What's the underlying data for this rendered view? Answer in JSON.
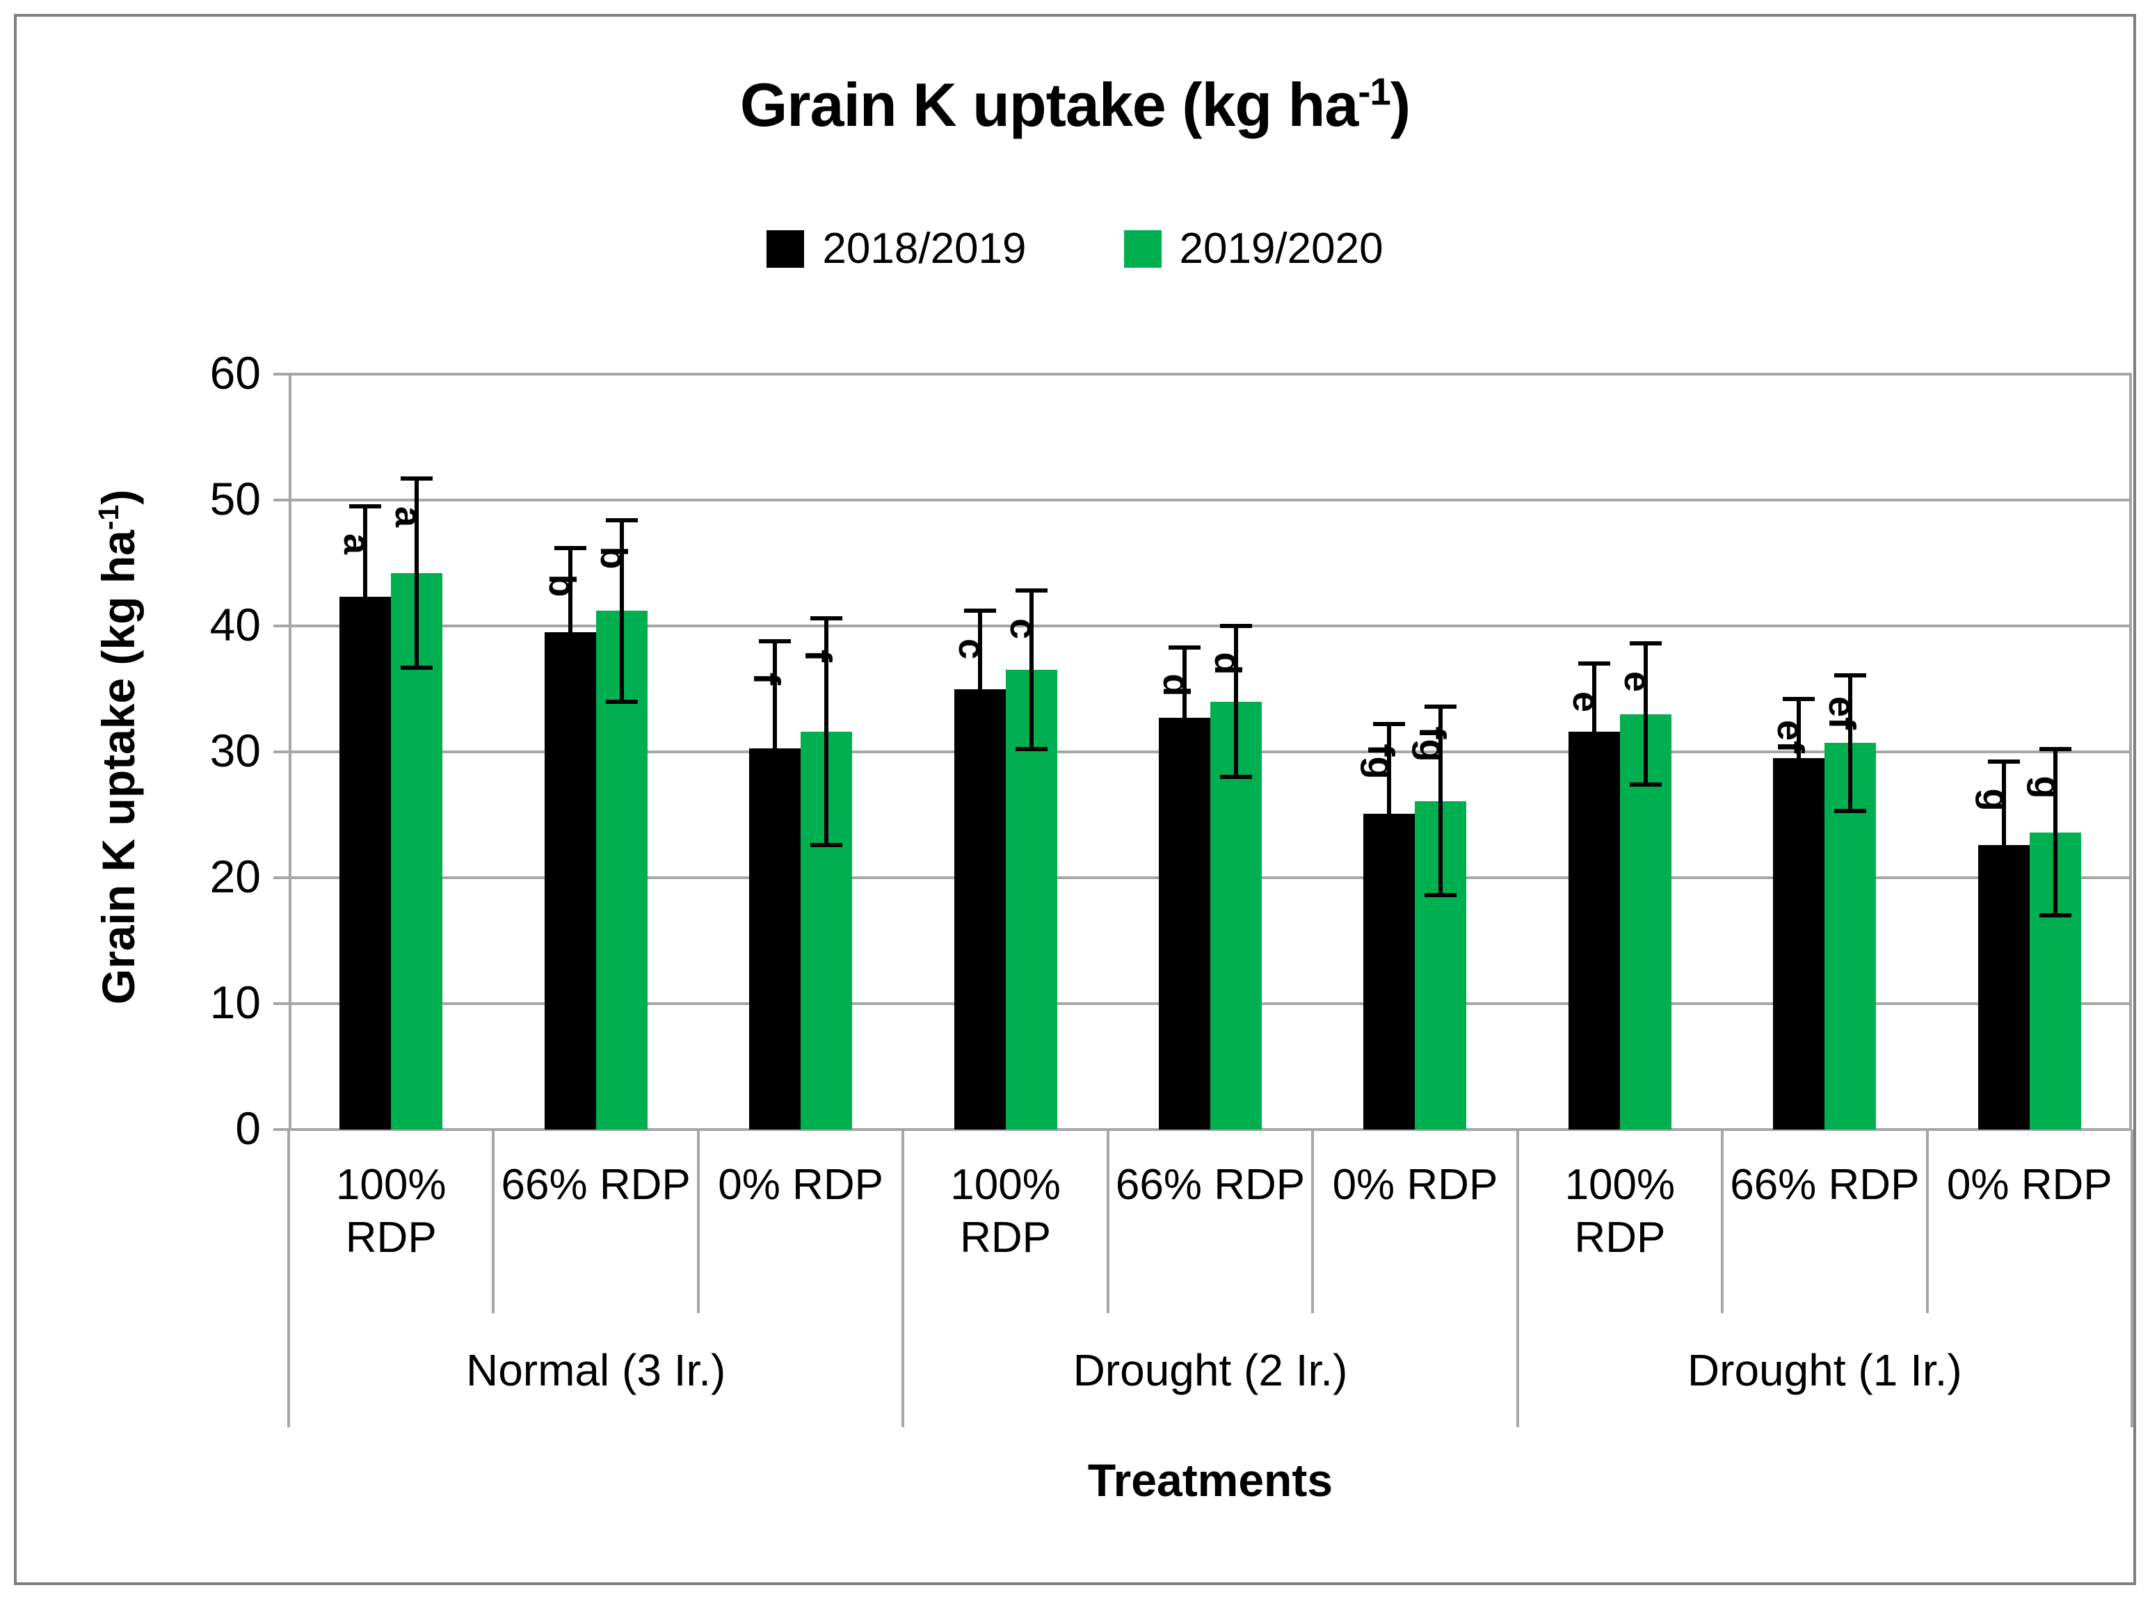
{
  "title": {
    "prefix": "Grain K uptake (kg ha",
    "sup": "-1",
    "suffix": ")"
  },
  "legend": {
    "items": [
      {
        "label": "2018/2019",
        "color": "#000000"
      },
      {
        "label": "2019/2020",
        "color": "#00B050"
      }
    ]
  },
  "y_axis": {
    "label_prefix": "Grain K uptake (kg ha",
    "label_sup": "-1",
    "label_suffix": ")",
    "ticks": [
      0,
      10,
      20,
      30,
      40,
      50,
      60
    ]
  },
  "x_axis": {
    "title": "Treatments"
  },
  "chart_data": {
    "type": "bar",
    "title": "Grain K uptake (kg ha-1)",
    "xlabel": "Treatments",
    "ylabel": "Grain K uptake (kg ha-1)",
    "ylim": [
      0,
      60
    ],
    "ytick_step": 10,
    "grid": true,
    "legend_position": "top",
    "categories": [
      "100% RDP",
      "66% RDP",
      "0% RDP",
      "100% RDP",
      "66% RDP",
      "0% RDP",
      "100% RDP",
      "66% RDP",
      "0% RDP"
    ],
    "groups": [
      {
        "label": "Normal (3 Ir.)",
        "span": 3
      },
      {
        "label": "Drought (2 Ir.)",
        "span": 3
      },
      {
        "label": "Drought (1 Ir.)",
        "span": 3
      }
    ],
    "series": [
      {
        "name": "2018/2019",
        "color": "#000000",
        "values": [
          42.3,
          39.5,
          30.3,
          35.0,
          32.7,
          25.1,
          31.6,
          29.5,
          22.6
        ],
        "errors": [
          7.2,
          6.7,
          8.5,
          6.2,
          5.6,
          7.1,
          5.4,
          4.7,
          6.6
        ]
      },
      {
        "name": "2019/2020",
        "color": "#00B050",
        "values": [
          44.2,
          41.2,
          31.6,
          36.5,
          34.0,
          26.1,
          33.0,
          30.7,
          23.6
        ],
        "errors": [
          7.5,
          7.2,
          9.0,
          6.3,
          6.0,
          7.5,
          5.6,
          5.4,
          6.6
        ]
      }
    ],
    "significance_letters": [
      "a",
      "b",
      "f",
      "c",
      "d",
      "fg",
      "e",
      "ef",
      "g"
    ],
    "colors": {
      "gridline": "#a6a6a6",
      "axis": "#a6a6a6",
      "error_bar": "#000000",
      "frame_border": "#7f7f7f"
    }
  }
}
